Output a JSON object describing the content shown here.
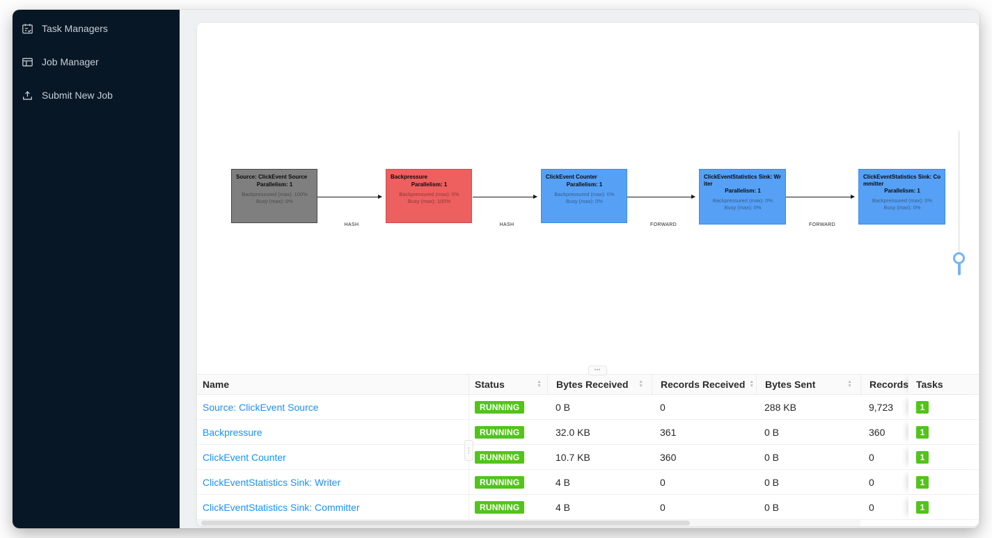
{
  "colors": {
    "link": "#1890ff",
    "running_green": "#52c41a",
    "sidebar_bg": "#081725",
    "slider_blue": "#74b3f5"
  },
  "icons": {
    "ellipsis_horizontal": "•••",
    "ellipsis_vertical": "⋮",
    "sort_up": "▲",
    "sort_down": "▼"
  },
  "sidebar": {
    "items": [
      {
        "label": "Task Managers"
      },
      {
        "label": "Job Manager"
      },
      {
        "label": "Submit New Job"
      }
    ]
  },
  "graph": {
    "nodes": [
      {
        "name": "Source: ClickEvent Source",
        "parallelism": "Parallelism: 1",
        "backpressured": "Backpressured (max): 100%",
        "busy": "Busy (max): 0%",
        "fill": "#7f7f7f",
        "border": "#474747"
      },
      {
        "name": "Backpressure",
        "parallelism": "Parallelism: 1",
        "backpressured": "Backpressured (max): 0%",
        "busy": "Busy (max): 100%",
        "fill": "#ee5f5f",
        "border": "#d34c4c"
      },
      {
        "name": "ClickEvent Counter",
        "parallelism": "Parallelism: 1",
        "backpressured": "Backpressured (max): 0%",
        "busy": "Busy (max): 0%",
        "fill": "#56a0f5",
        "border": "#3d8be9"
      },
      {
        "name": "ClickEventStatistics Sink: Writer",
        "parallelism": "Parallelism: 1",
        "backpressured": "Backpressured (max): 0%",
        "busy": "Busy (max): 0%",
        "fill": "#56a0f5",
        "border": "#3d8be9"
      },
      {
        "name": "ClickEventStatistics Sink: Committer",
        "parallelism": "Parallelism: 1",
        "backpressured": "Backpressured (max): 0%",
        "busy": "Busy (max): 0%",
        "fill": "#56a0f5",
        "border": "#3d8be9"
      }
    ],
    "edges": [
      {
        "label": "HASH"
      },
      {
        "label": "HASH"
      },
      {
        "label": "FORWARD"
      },
      {
        "label": "FORWARD"
      }
    ]
  },
  "table": {
    "columns": [
      {
        "label": "Name",
        "sortable": false
      },
      {
        "label": "Status",
        "sortable": true
      },
      {
        "label": "Bytes Received",
        "sortable": true
      },
      {
        "label": "Records Received",
        "sortable": true
      },
      {
        "label": "Bytes Sent",
        "sortable": true
      },
      {
        "label": "Records Sent",
        "sortable": true
      },
      {
        "label": "Tasks",
        "sortable": false
      }
    ],
    "rows": [
      {
        "name": "Source: ClickEvent Source",
        "status": "RUNNING",
        "bytes_received": "0 B",
        "records_received": "0",
        "bytes_sent": "288 KB",
        "records_sent": "9,723",
        "tasks": "1"
      },
      {
        "name": "Backpressure",
        "status": "RUNNING",
        "bytes_received": "32.0 KB",
        "records_received": "361",
        "bytes_sent": "0 B",
        "records_sent": "360",
        "tasks": "1"
      },
      {
        "name": "ClickEvent Counter",
        "status": "RUNNING",
        "bytes_received": "10.7 KB",
        "records_received": "360",
        "bytes_sent": "0 B",
        "records_sent": "0",
        "tasks": "1"
      },
      {
        "name": "ClickEventStatistics Sink: Writer",
        "status": "RUNNING",
        "bytes_received": "4 B",
        "records_received": "0",
        "bytes_sent": "0 B",
        "records_sent": "0",
        "tasks": "1"
      },
      {
        "name": "ClickEventStatistics Sink: Committer",
        "status": "RUNNING",
        "bytes_received": "4 B",
        "records_received": "0",
        "bytes_sent": "0 B",
        "records_sent": "0",
        "tasks": "1"
      }
    ]
  }
}
